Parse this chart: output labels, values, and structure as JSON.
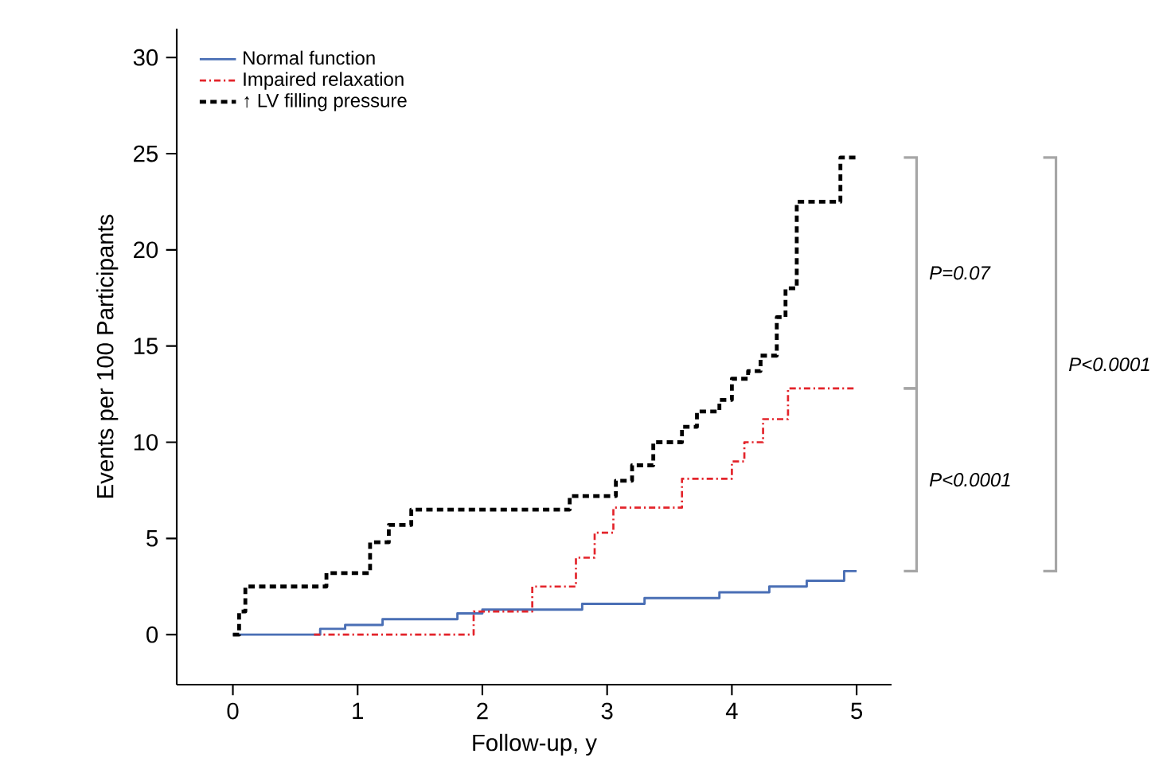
{
  "chart_data": {
    "type": "step",
    "xlabel": "Follow-up, y",
    "ylabel": "Events per 100 Participants",
    "xlim": [
      -0.45,
      5.28
    ],
    "ylim": [
      -2.6,
      31.5
    ],
    "xticks": [
      0,
      1,
      2,
      3,
      4,
      5
    ],
    "yticks": [
      0,
      5,
      10,
      15,
      20,
      25,
      30
    ],
    "legend": "top left",
    "grid": false,
    "series": [
      {
        "name": "Normal function",
        "color": "#4a6fb5",
        "line_style": "solid",
        "x": [
          0,
          0.7,
          0.9,
          1.2,
          1.8,
          2.0,
          2.8,
          3.3,
          3.9,
          4.3,
          4.6,
          4.9,
          5.0
        ],
        "values": [
          0,
          0.3,
          0.5,
          0.8,
          1.1,
          1.3,
          1.6,
          1.9,
          2.2,
          2.5,
          2.8,
          3.3,
          3.3
        ]
      },
      {
        "name": "Impaired relaxation",
        "color": "#e3242b",
        "line_style": "dashdot",
        "x": [
          0.65,
          1.93,
          2.4,
          2.75,
          2.9,
          3.05,
          3.6,
          4.0,
          4.1,
          4.25,
          4.45,
          5.0
        ],
        "values": [
          0,
          1.2,
          2.5,
          4.0,
          5.3,
          6.6,
          8.1,
          9.0,
          10.0,
          11.2,
          12.8,
          12.8
        ]
      },
      {
        "name": "↑ LV filling pressure",
        "color": "#000000",
        "line_style": "dashed",
        "x": [
          0,
          0.05,
          0.1,
          0.75,
          1.1,
          1.25,
          1.43,
          2.7,
          3.07,
          3.2,
          3.37,
          3.6,
          3.72,
          3.9,
          4.0,
          4.13,
          4.23,
          4.36,
          4.43,
          4.52,
          4.87,
          5.0
        ],
        "values": [
          0,
          1.2,
          2.5,
          3.2,
          4.8,
          5.7,
          6.5,
          7.2,
          8.0,
          8.8,
          10.0,
          10.8,
          11.6,
          12.2,
          13.3,
          13.7,
          14.5,
          16.5,
          18.0,
          22.5,
          24.8,
          24.8
        ]
      }
    ],
    "annotations": [
      "P=0.07",
      "P<0.0001",
      "P<0.0001"
    ]
  }
}
